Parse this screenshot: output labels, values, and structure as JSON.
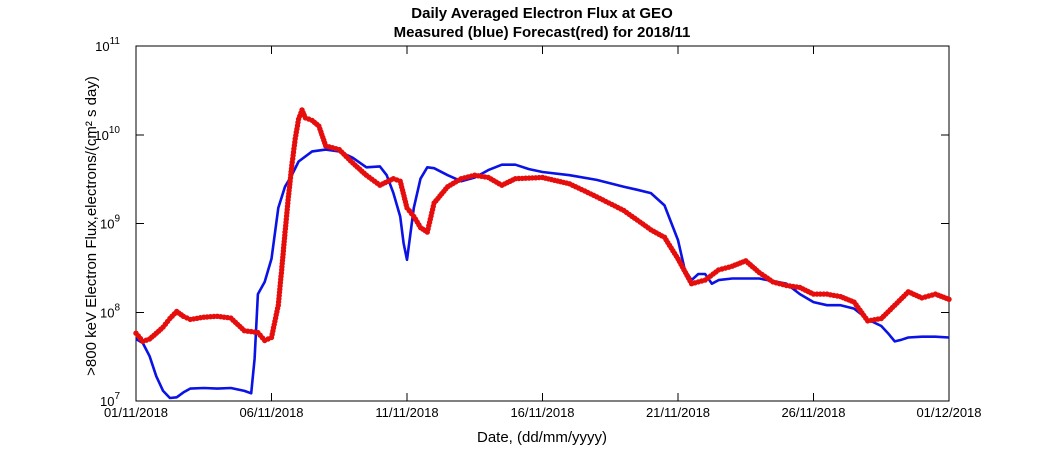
{
  "chart_data": {
    "type": "line",
    "title": "Daily Averaged Electron Flux at GEO",
    "subtitle": "Measured (blue) Forecast(red) for 2018/11",
    "xlabel": "Date, (dd/mm/yyyy)",
    "ylabel": ">800 keV Electron Flux,electrons/(cm² s day)",
    "x_scale": "date",
    "xlim": [
      "01/11/2018",
      "01/12/2018"
    ],
    "x_ticks": [
      "01/11/2018",
      "06/11/2018",
      "11/11/2018",
      "16/11/2018",
      "21/11/2018",
      "26/11/2018",
      "01/12/2018"
    ],
    "y_scale": "log",
    "ylim": [
      10000000.0,
      100000000000.0
    ],
    "y_ticks": [
      {
        "base": "10",
        "exp": "7",
        "value": 10000000.0
      },
      {
        "base": "10",
        "exp": "8",
        "value": 100000000.0
      },
      {
        "base": "10",
        "exp": "9",
        "value": 1000000000.0
      },
      {
        "base": "10",
        "exp": "10",
        "value": 10000000000.0
      },
      {
        "base": "10",
        "exp": "11",
        "value": 100000000000.0
      }
    ],
    "grid": false,
    "series": [
      {
        "name": "Measured",
        "color": "#0a12e6",
        "style": "line",
        "points": [
          [
            "01/11/2018 00:00",
            50000000.0
          ],
          [
            "01/11/2018 06:00",
            45000000.0
          ],
          [
            "01/11/2018 12:00",
            32000000.0
          ],
          [
            "01/11/2018 18:00",
            19000000.0
          ],
          [
            "02/11/2018 00:00",
            13000000.0
          ],
          [
            "02/11/2018 06:00",
            10800000.0
          ],
          [
            "02/11/2018 12:00",
            11000000.0
          ],
          [
            "02/11/2018 18:00",
            12500000.0
          ],
          [
            "03/11/2018 00:00",
            13800000.0
          ],
          [
            "03/11/2018 12:00",
            14000000.0
          ],
          [
            "04/11/2018 00:00",
            13800000.0
          ],
          [
            "04/11/2018 12:00",
            14000000.0
          ],
          [
            "05/11/2018 00:00",
            13000000.0
          ],
          [
            "05/11/2018 06:00",
            12200000.0
          ],
          [
            "05/11/2018 09:00",
            30000000.0
          ],
          [
            "05/11/2018 12:00",
            160000000.0
          ],
          [
            "05/11/2018 18:00",
            220000000.0
          ],
          [
            "06/11/2018 00:00",
            400000000.0
          ],
          [
            "06/11/2018 06:00",
            1500000000.0
          ],
          [
            "06/11/2018 12:00",
            2600000000.0
          ],
          [
            "06/11/2018 18:00",
            3500000000.0
          ],
          [
            "07/11/2018 00:00",
            5000000000.0
          ],
          [
            "07/11/2018 12:00",
            6500000000.0
          ],
          [
            "08/11/2018 00:00",
            6800000000.0
          ],
          [
            "08/11/2018 12:00",
            6500000000.0
          ],
          [
            "09/11/2018 00:00",
            5500000000.0
          ],
          [
            "09/11/2018 12:00",
            4300000000.0
          ],
          [
            "10/11/2018 00:00",
            4400000000.0
          ],
          [
            "10/11/2018 06:00",
            3500000000.0
          ],
          [
            "10/11/2018 12:00",
            2200000000.0
          ],
          [
            "10/11/2018 18:00",
            1200000000.0
          ],
          [
            "10/11/2018 21:00",
            600000000.0
          ],
          [
            "11/11/2018 00:00",
            390000000.0
          ],
          [
            "11/11/2018 06:00",
            1500000000.0
          ],
          [
            "11/11/2018 12:00",
            3200000000.0
          ],
          [
            "11/11/2018 18:00",
            4300000000.0
          ],
          [
            "12/11/2018 00:00",
            4200000000.0
          ],
          [
            "12/11/2018 12:00",
            3500000000.0
          ],
          [
            "13/11/2018 00:00",
            3000000000.0
          ],
          [
            "13/11/2018 12:00",
            3300000000.0
          ],
          [
            "14/11/2018 00:00",
            4000000000.0
          ],
          [
            "14/11/2018 12:00",
            4600000000.0
          ],
          [
            "15/11/2018 00:00",
            4600000000.0
          ],
          [
            "15/11/2018 12:00",
            4100000000.0
          ],
          [
            "16/11/2018 00:00",
            3800000000.0
          ],
          [
            "17/11/2018 00:00",
            3500000000.0
          ],
          [
            "18/11/2018 00:00",
            3100000000.0
          ],
          [
            "19/11/2018 00:00",
            2600000000.0
          ],
          [
            "19/11/2018 12:00",
            2400000000.0
          ],
          [
            "20/11/2018 00:00",
            2200000000.0
          ],
          [
            "20/11/2018 12:00",
            1600000000.0
          ],
          [
            "21/11/2018 00:00",
            650000000.0
          ],
          [
            "21/11/2018 06:00",
            300000000.0
          ],
          [
            "21/11/2018 12:00",
            230000000.0
          ],
          [
            "21/11/2018 18:00",
            270000000.0
          ],
          [
            "22/11/2018 00:00",
            270000000.0
          ],
          [
            "22/11/2018 06:00",
            210000000.0
          ],
          [
            "22/11/2018 12:00",
            230000000.0
          ],
          [
            "23/11/2018 00:00",
            240000000.0
          ],
          [
            "24/11/2018 00:00",
            240000000.0
          ],
          [
            "25/11/2018 00:00",
            210000000.0
          ],
          [
            "25/11/2018 12:00",
            160000000.0
          ],
          [
            "26/11/2018 00:00",
            130000000.0
          ],
          [
            "26/11/2018 12:00",
            120000000.0
          ],
          [
            "27/11/2018 00:00",
            120000000.0
          ],
          [
            "27/11/2018 12:00",
            110000000.0
          ],
          [
            "28/11/2018 00:00",
            83000000.0
          ],
          [
            "28/11/2018 12:00",
            70000000.0
          ],
          [
            "28/11/2018 18:00",
            58000000.0
          ],
          [
            "29/11/2018 00:00",
            47000000.0
          ],
          [
            "29/11/2018 06:00",
            49000000.0
          ],
          [
            "29/11/2018 12:00",
            52000000.0
          ],
          [
            "30/11/2018 00:00",
            53000000.0
          ],
          [
            "30/11/2018 12:00",
            53000000.0
          ],
          [
            "01/12/2018 00:00",
            52000000.0
          ]
        ]
      },
      {
        "name": "Forecast",
        "color": "#e60d0d",
        "style": "dots",
        "points": [
          [
            "01/11/2018 00:00",
            58000000.0
          ],
          [
            "01/11/2018 06:00",
            47000000.0
          ],
          [
            "01/11/2018 12:00",
            50000000.0
          ],
          [
            "01/11/2018 18:00",
            58000000.0
          ],
          [
            "02/11/2018 00:00",
            68000000.0
          ],
          [
            "02/11/2018 06:00",
            85000000.0
          ],
          [
            "02/11/2018 12:00",
            102000000.0
          ],
          [
            "02/11/2018 18:00",
            90000000.0
          ],
          [
            "03/11/2018 00:00",
            83000000.0
          ],
          [
            "03/11/2018 12:00",
            88000000.0
          ],
          [
            "04/11/2018 00:00",
            90000000.0
          ],
          [
            "04/11/2018 12:00",
            86000000.0
          ],
          [
            "05/11/2018 00:00",
            62000000.0
          ],
          [
            "05/11/2018 12:00",
            59000000.0
          ],
          [
            "05/11/2018 18:00",
            48000000.0
          ],
          [
            "06/11/2018 00:00",
            52000000.0
          ],
          [
            "06/11/2018 06:00",
            120000000.0
          ],
          [
            "06/11/2018 09:00",
            300000000.0
          ],
          [
            "06/11/2018 12:00",
            800000000.0
          ],
          [
            "06/11/2018 15:00",
            2000000000.0
          ],
          [
            "06/11/2018 18:00",
            4500000000.0
          ],
          [
            "06/11/2018 21:00",
            9000000000.0
          ],
          [
            "07/11/2018 00:00",
            15000000000.0
          ],
          [
            "07/11/2018 03:00",
            19000000000.0
          ],
          [
            "07/11/2018 06:00",
            15500000000.0
          ],
          [
            "07/11/2018 12:00",
            14500000000.0
          ],
          [
            "07/11/2018 18:00",
            12500000000.0
          ],
          [
            "08/11/2018 00:00",
            7500000000.0
          ],
          [
            "08/11/2018 12:00",
            6800000000.0
          ],
          [
            "09/11/2018 00:00",
            4800000000.0
          ],
          [
            "09/11/2018 12:00",
            3500000000.0
          ],
          [
            "10/11/2018 00:00",
            2700000000.0
          ],
          [
            "10/11/2018 12:00",
            3200000000.0
          ],
          [
            "10/11/2018 18:00",
            3000000000.0
          ],
          [
            "11/11/2018 00:00",
            1500000000.0
          ],
          [
            "11/11/2018 06:00",
            1200000000.0
          ],
          [
            "11/11/2018 12:00",
            900000000.0
          ],
          [
            "11/11/2018 18:00",
            800000000.0
          ],
          [
            "12/11/2018 00:00",
            1700000000.0
          ],
          [
            "12/11/2018 12:00",
            2600000000.0
          ],
          [
            "13/11/2018 00:00",
            3200000000.0
          ],
          [
            "13/11/2018 12:00",
            3500000000.0
          ],
          [
            "14/11/2018 00:00",
            3300000000.0
          ],
          [
            "14/11/2018 12:00",
            2700000000.0
          ],
          [
            "15/11/2018 00:00",
            3200000000.0
          ],
          [
            "16/11/2018 00:00",
            3300000000.0
          ],
          [
            "17/11/2018 00:00",
            2800000000.0
          ],
          [
            "18/11/2018 00:00",
            2000000000.0
          ],
          [
            "19/11/2018 00:00",
            1400000000.0
          ],
          [
            "20/11/2018 00:00",
            850000000.0
          ],
          [
            "20/11/2018 12:00",
            700000000.0
          ],
          [
            "21/11/2018 00:00",
            400000000.0
          ],
          [
            "21/11/2018 12:00",
            210000000.0
          ],
          [
            "22/11/2018 00:00",
            230000000.0
          ],
          [
            "22/11/2018 12:00",
            300000000.0
          ],
          [
            "23/11/2018 00:00",
            330000000.0
          ],
          [
            "23/11/2018 12:00",
            380000000.0
          ],
          [
            "24/11/2018 00:00",
            280000000.0
          ],
          [
            "24/11/2018 12:00",
            220000000.0
          ],
          [
            "25/11/2018 00:00",
            200000000.0
          ],
          [
            "25/11/2018 12:00",
            190000000.0
          ],
          [
            "26/11/2018 00:00",
            160000000.0
          ],
          [
            "26/11/2018 12:00",
            160000000.0
          ],
          [
            "27/11/2018 00:00",
            150000000.0
          ],
          [
            "27/11/2018 12:00",
            130000000.0
          ],
          [
            "28/11/2018 00:00",
            80000000.0
          ],
          [
            "28/11/2018 12:00",
            85000000.0
          ],
          [
            "29/11/2018 00:00",
            120000000.0
          ],
          [
            "29/11/2018 12:00",
            170000000.0
          ],
          [
            "30/11/2018 00:00",
            145000000.0
          ],
          [
            "30/11/2018 12:00",
            160000000.0
          ],
          [
            "01/12/2018 00:00",
            140000000.0
          ]
        ]
      }
    ]
  }
}
